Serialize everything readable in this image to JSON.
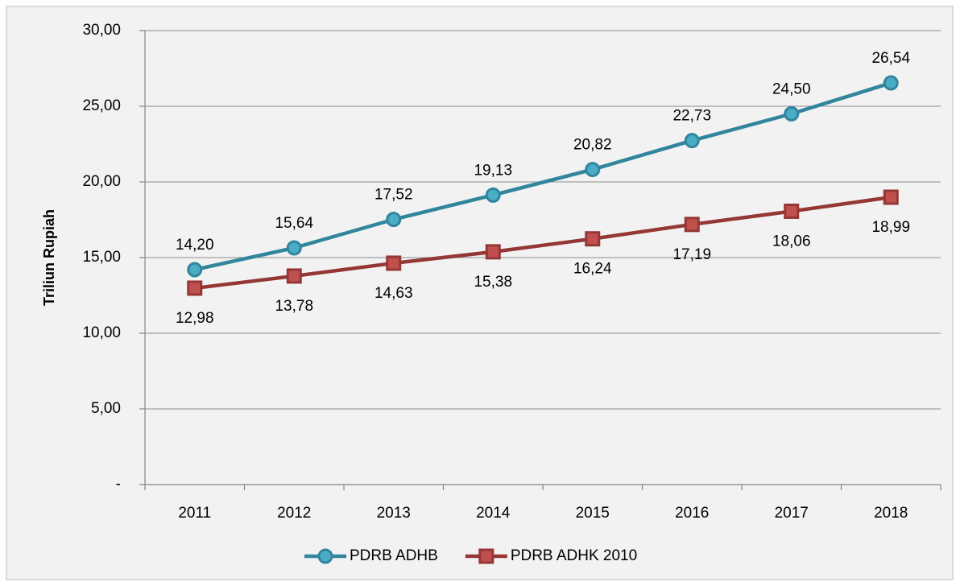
{
  "chart_data": {
    "type": "line",
    "y_axis_label": "Triliun Rupiah",
    "categories": [
      "2011",
      "2012",
      "2013",
      "2014",
      "2015",
      "2016",
      "2017",
      "2018"
    ],
    "series": [
      {
        "name": "PDRB ADHB",
        "color": "#31859c",
        "marker": "circle",
        "values": [
          14.2,
          15.64,
          17.52,
          19.13,
          20.82,
          22.73,
          24.5,
          26.54
        ],
        "value_labels": [
          "14,20",
          "15,64",
          "17,52",
          "19,13",
          "20,82",
          "22,73",
          "24,50",
          "26,54"
        ]
      },
      {
        "name": "PDRB ADHK 2010",
        "color": "#953735",
        "marker": "square",
        "values": [
          12.98,
          13.78,
          14.63,
          15.38,
          16.24,
          17.19,
          18.06,
          18.99
        ],
        "value_labels": [
          "12,98",
          "13,78",
          "14,63",
          "15,38",
          "16,24",
          "17,19",
          "18,06",
          "18,99"
        ]
      }
    ],
    "ylim": [
      0,
      30
    ],
    "yticks": [
      {
        "value": 0,
        "label": "-"
      },
      {
        "value": 5,
        "label": "5,00"
      },
      {
        "value": 10,
        "label": "10,00"
      },
      {
        "value": 15,
        "label": "15,00"
      },
      {
        "value": 20,
        "label": "20,00"
      },
      {
        "value": 25,
        "label": "25,00"
      },
      {
        "value": 30,
        "label": "30,00"
      }
    ],
    "grid": true,
    "legend": "bottom"
  }
}
